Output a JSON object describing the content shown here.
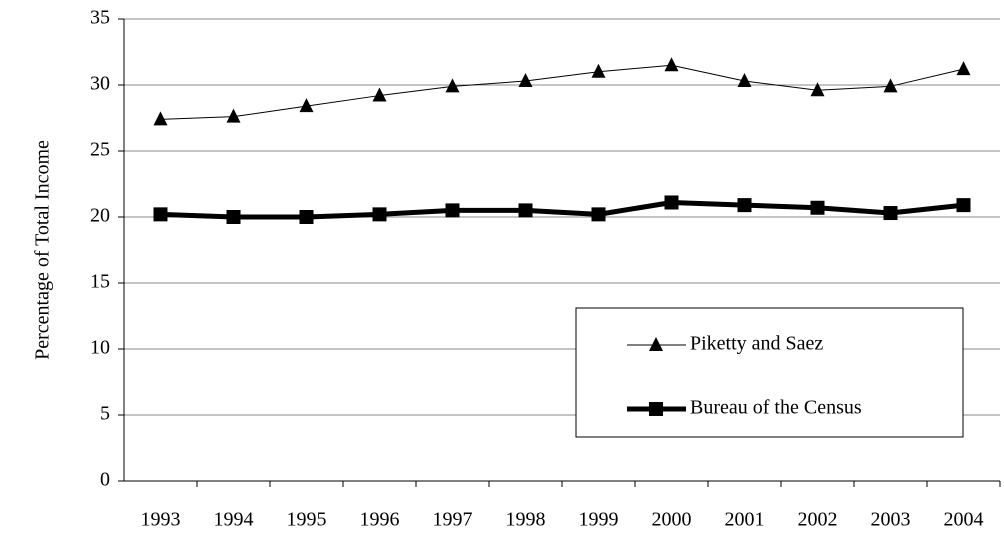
{
  "chart_data": {
    "type": "line",
    "y_label": "Percentage of Total Income",
    "categories": [
      "1993",
      "1994",
      "1995",
      "1996",
      "1997",
      "1998",
      "1999",
      "2000",
      "2001",
      "2002",
      "2003",
      "2004"
    ],
    "series": [
      {
        "name": "Piketty and Saez",
        "color": "#000000",
        "marker": "triangle",
        "line_width": 1,
        "values": [
          27.4,
          27.6,
          28.4,
          29.2,
          29.9,
          30.3,
          31.0,
          31.5,
          30.3,
          29.6,
          29.9,
          31.2
        ]
      },
      {
        "name": "Bureau of the Census",
        "color": "#000000",
        "marker": "square",
        "line_width": 5,
        "values": [
          20.2,
          20.0,
          20.0,
          20.2,
          20.5,
          20.5,
          20.2,
          21.1,
          20.9,
          20.7,
          20.3,
          20.9
        ]
      }
    ],
    "ylim": [
      0,
      35
    ],
    "yticks": [
      0,
      5,
      10,
      15,
      20,
      25,
      30,
      35
    ],
    "grid": true
  }
}
